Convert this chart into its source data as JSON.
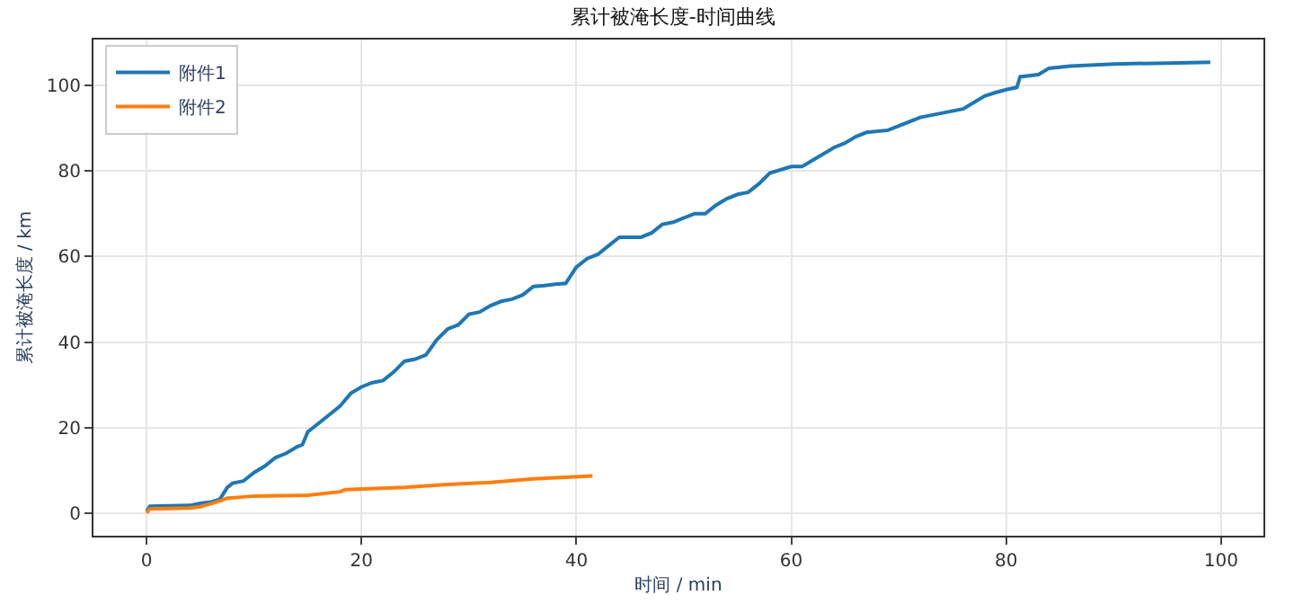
{
  "chart_data": {
    "type": "line",
    "title": "累计被淹长度-时间曲线",
    "xlabel": "时间 / min",
    "ylabel": "累计被淹长度 / km",
    "xlim": [
      -4.95,
      103.95
    ],
    "xticks": [
      0,
      20,
      40,
      60,
      80,
      100
    ],
    "ylim": [
      -5.27,
      110.7
    ],
    "yticks": [
      0,
      20,
      40,
      60,
      80,
      100
    ],
    "grid": true,
    "legend": "top left",
    "series": [
      {
        "name": "附件1",
        "color": "#1f77b4",
        "x": [
          0,
          0.3,
          4,
          5,
          6,
          6.8,
          7.5,
          8,
          9,
          10,
          11,
          12,
          13,
          14,
          14.5,
          15,
          16,
          17,
          18,
          19,
          20,
          21,
          22,
          23,
          24,
          25,
          26,
          27,
          28,
          29,
          30,
          31,
          32,
          33,
          34,
          35,
          36,
          37,
          38,
          39,
          40,
          41,
          42,
          43,
          44,
          46,
          47,
          48,
          49,
          50,
          51,
          52,
          53,
          54,
          55,
          56,
          57,
          58,
          60,
          61,
          62,
          64,
          65,
          66,
          67,
          69,
          70,
          72,
          74,
          76,
          77,
          78,
          79,
          80,
          81,
          81.3,
          83,
          84,
          86,
          90,
          95,
          99
        ],
        "values": [
          0.5,
          1.6,
          1.8,
          2.3,
          2.6,
          3.2,
          6,
          7,
          7.5,
          9.5,
          11,
          13,
          14,
          15.5,
          16,
          19,
          21,
          23,
          25,
          28,
          29.5,
          30.5,
          31,
          33,
          35.5,
          36,
          37,
          40.5,
          43,
          44,
          46.5,
          47,
          48.5,
          49.5,
          50,
          51,
          53,
          53.2,
          53.5,
          53.7,
          57.5,
          59.5,
          60.5,
          62.5,
          64.5,
          64.5,
          65.5,
          67.5,
          68,
          69,
          70,
          70,
          72,
          73.5,
          74.5,
          75,
          77,
          79.5,
          81,
          81,
          82.5,
          85.5,
          86.5,
          88,
          89,
          89.5,
          90.5,
          92.5,
          93.5,
          94.5,
          96,
          97.5,
          98.3,
          99,
          99.5,
          102,
          102.5,
          104,
          104.5,
          105,
          105.2,
          105.4
        ]
      },
      {
        "name": "附件2",
        "color": "#ff7f0e",
        "x": [
          0,
          0.3,
          4,
          5,
          6,
          7,
          7.5,
          10,
          15,
          18,
          18.5,
          24,
          28,
          32,
          36,
          41.5
        ],
        "values": [
          0,
          1,
          1.2,
          1.5,
          2.2,
          3,
          3.5,
          4,
          4.2,
          5,
          5.5,
          6,
          6.7,
          7.2,
          8,
          8.7
        ]
      }
    ]
  }
}
